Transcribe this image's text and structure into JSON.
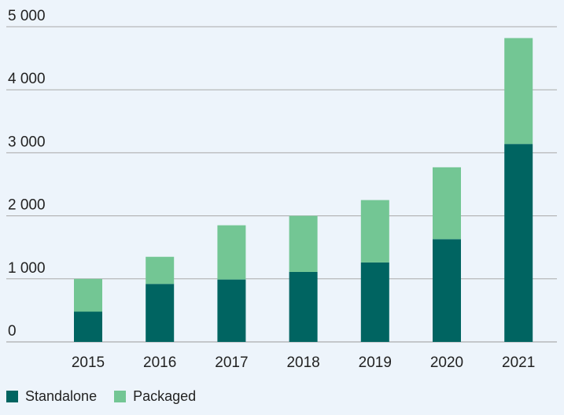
{
  "chart_data": {
    "type": "bar",
    "stacked": true,
    "categories": [
      "2015",
      "2016",
      "2017",
      "2018",
      "2019",
      "2020",
      "2021"
    ],
    "series": [
      {
        "name": "Standalone",
        "color": "#006461",
        "values": [
          480,
          920,
          990,
          1110,
          1260,
          1630,
          3140
        ]
      },
      {
        "name": "Packaged",
        "color": "#73c694",
        "values": [
          520,
          430,
          860,
          890,
          990,
          1140,
          1680
        ]
      }
    ],
    "ylim": [
      0,
      5000
    ],
    "yticks": [
      0,
      1000,
      2000,
      3000,
      4000,
      5000
    ],
    "ytick_labels": [
      "0",
      "1 000",
      "2 000",
      "3 000",
      "4 000",
      "5 000"
    ],
    "grid": true,
    "legend_position": "bottom-left",
    "title": "",
    "xlabel": "",
    "ylabel": ""
  }
}
